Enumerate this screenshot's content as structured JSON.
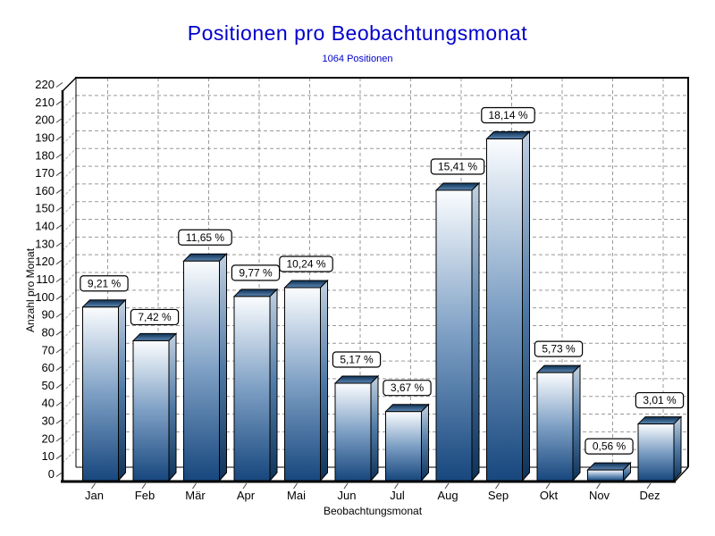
{
  "chart_data": {
    "type": "bar",
    "style": "3d-column",
    "title": "Positionen pro Beobachtungsmonat",
    "subtitle": "1064 Positionen",
    "total_positions": 1064,
    "xlabel": "Beobachtungsmonat",
    "ylabel": "Anzahl pro Monat",
    "categories": [
      "Jan",
      "Feb",
      "Mär",
      "Apr",
      "Mai",
      "Jun",
      "Jul",
      "Aug",
      "Sep",
      "Okt",
      "Nov",
      "Dez"
    ],
    "values": [
      98,
      79,
      124,
      104,
      109,
      55,
      39,
      164,
      193,
      61,
      6,
      32
    ],
    "bar_percent_labels": [
      "9,21 %",
      "7,42 %",
      "11,65 %",
      "9,77 %",
      "10,24 %",
      "5,17 %",
      "3,67 %",
      "15,41 %",
      "18,14 %",
      "5,73 %",
      "0,56 %",
      "3,01 %"
    ],
    "ylim": [
      0,
      220
    ],
    "y_tick_step": 10,
    "grid": true,
    "grid_style": "dashed",
    "legend": "none",
    "colors": {
      "title": "#0000CC",
      "background": "#FFFFFF",
      "axis": "#000000",
      "grid": "#999999",
      "wall_tick": "#AAAAAA",
      "tick_mark": "#444444",
      "bar_front_top": "#FBFDFF",
      "bar_front_mid": "#7D9FC4",
      "bar_front_bottom": "#17477E",
      "bar_side_top": "#C2D1E1",
      "bar_side_mid": "#4F7AA6",
      "bar_side_bottom": "#0E3257",
      "bar_topface_back": "#0D3055",
      "bar_topface_front": "#5E88B3",
      "label_box_bg": "#FFFFFF",
      "label_box_border": "#000000",
      "label_text": "#000000"
    }
  }
}
